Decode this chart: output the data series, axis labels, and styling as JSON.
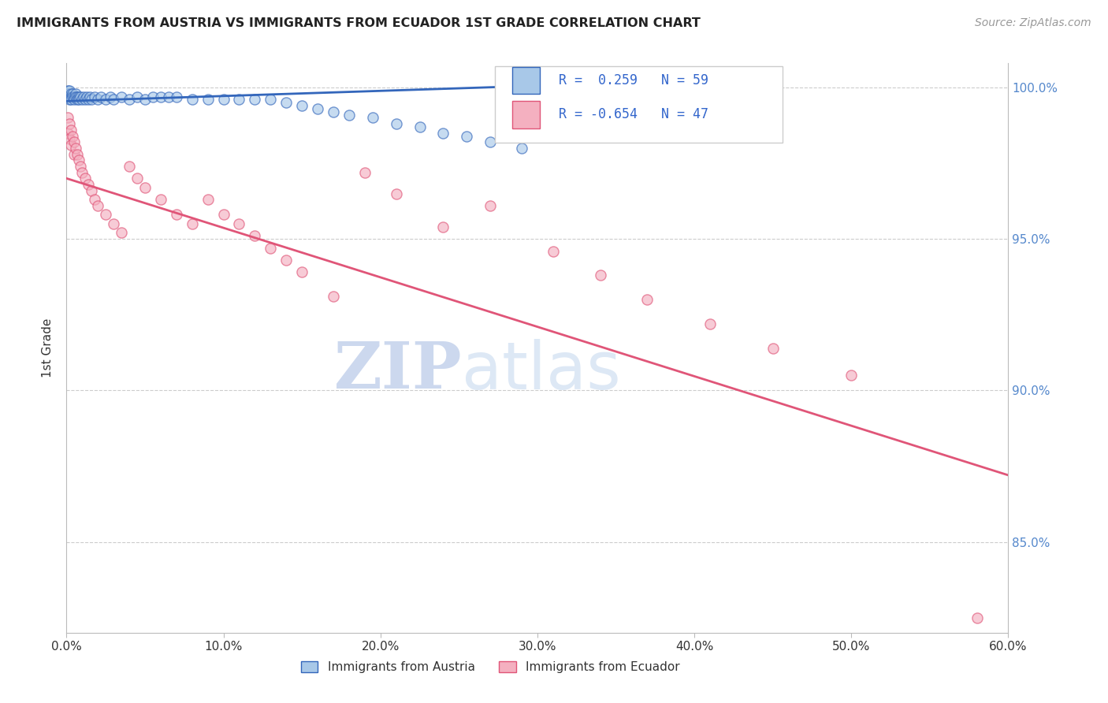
{
  "title": "IMMIGRANTS FROM AUSTRIA VS IMMIGRANTS FROM ECUADOR 1ST GRADE CORRELATION CHART",
  "source": "Source: ZipAtlas.com",
  "ylabel": "1st Grade",
  "xlim": [
    0.0,
    0.6
  ],
  "ylim": [
    0.82,
    1.008
  ],
  "xtick_labels": [
    "0.0%",
    "10.0%",
    "20.0%",
    "30.0%",
    "40.0%",
    "50.0%",
    "60.0%"
  ],
  "xtick_vals": [
    0.0,
    0.1,
    0.2,
    0.3,
    0.4,
    0.5,
    0.6
  ],
  "ytick_labels": [
    "85.0%",
    "90.0%",
    "95.0%",
    "100.0%"
  ],
  "ytick_vals": [
    0.85,
    0.9,
    0.95,
    1.0
  ],
  "austria_R": 0.259,
  "austria_N": 59,
  "ecuador_R": -0.654,
  "ecuador_N": 47,
  "austria_color": "#a8c8e8",
  "ecuador_color": "#f4b0c0",
  "austria_line_color": "#3366bb",
  "ecuador_line_color": "#e05578",
  "watermark_zip": "ZIP",
  "watermark_atlas": "atlas",
  "watermark_color": "#ccd8ee",
  "background_color": "#ffffff",
  "grid_color": "#cccccc",
  "austria_x": [
    0.001,
    0.001,
    0.001,
    0.002,
    0.002,
    0.002,
    0.003,
    0.003,
    0.003,
    0.004,
    0.004,
    0.005,
    0.005,
    0.006,
    0.006,
    0.007,
    0.007,
    0.008,
    0.008,
    0.009,
    0.01,
    0.011,
    0.012,
    0.013,
    0.014,
    0.015,
    0.016,
    0.018,
    0.02,
    0.022,
    0.025,
    0.028,
    0.03,
    0.035,
    0.04,
    0.045,
    0.05,
    0.055,
    0.06,
    0.065,
    0.07,
    0.08,
    0.09,
    0.1,
    0.11,
    0.12,
    0.13,
    0.14,
    0.15,
    0.16,
    0.17,
    0.18,
    0.195,
    0.21,
    0.225,
    0.24,
    0.255,
    0.27,
    0.29
  ],
  "austria_y": [
    0.999,
    0.998,
    0.997,
    0.999,
    0.997,
    0.996,
    0.998,
    0.997,
    0.996,
    0.998,
    0.997,
    0.997,
    0.996,
    0.998,
    0.997,
    0.997,
    0.996,
    0.997,
    0.996,
    0.997,
    0.996,
    0.997,
    0.996,
    0.997,
    0.996,
    0.997,
    0.996,
    0.997,
    0.996,
    0.997,
    0.996,
    0.997,
    0.996,
    0.997,
    0.996,
    0.997,
    0.996,
    0.997,
    0.997,
    0.997,
    0.997,
    0.996,
    0.996,
    0.996,
    0.996,
    0.996,
    0.996,
    0.995,
    0.994,
    0.993,
    0.992,
    0.991,
    0.99,
    0.988,
    0.987,
    0.985,
    0.984,
    0.982,
    0.98
  ],
  "ecuador_x": [
    0.001,
    0.001,
    0.002,
    0.002,
    0.003,
    0.003,
    0.004,
    0.005,
    0.005,
    0.006,
    0.007,
    0.008,
    0.009,
    0.01,
    0.012,
    0.014,
    0.016,
    0.018,
    0.02,
    0.025,
    0.03,
    0.035,
    0.04,
    0.045,
    0.05,
    0.06,
    0.07,
    0.08,
    0.09,
    0.1,
    0.11,
    0.12,
    0.13,
    0.14,
    0.15,
    0.17,
    0.19,
    0.21,
    0.24,
    0.27,
    0.31,
    0.34,
    0.37,
    0.41,
    0.45,
    0.5,
    0.58
  ],
  "ecuador_y": [
    0.99,
    0.985,
    0.988,
    0.983,
    0.986,
    0.981,
    0.984,
    0.982,
    0.978,
    0.98,
    0.978,
    0.976,
    0.974,
    0.972,
    0.97,
    0.968,
    0.966,
    0.963,
    0.961,
    0.958,
    0.955,
    0.952,
    0.974,
    0.97,
    0.967,
    0.963,
    0.958,
    0.955,
    0.963,
    0.958,
    0.955,
    0.951,
    0.947,
    0.943,
    0.939,
    0.931,
    0.972,
    0.965,
    0.954,
    0.961,
    0.946,
    0.938,
    0.93,
    0.922,
    0.914,
    0.905,
    0.825
  ],
  "austria_line_x": [
    0.0,
    0.295
  ],
  "austria_line_y": [
    0.9955,
    1.0005
  ],
  "ecuador_line_x": [
    0.0,
    0.6
  ],
  "ecuador_line_y": [
    0.97,
    0.872
  ]
}
